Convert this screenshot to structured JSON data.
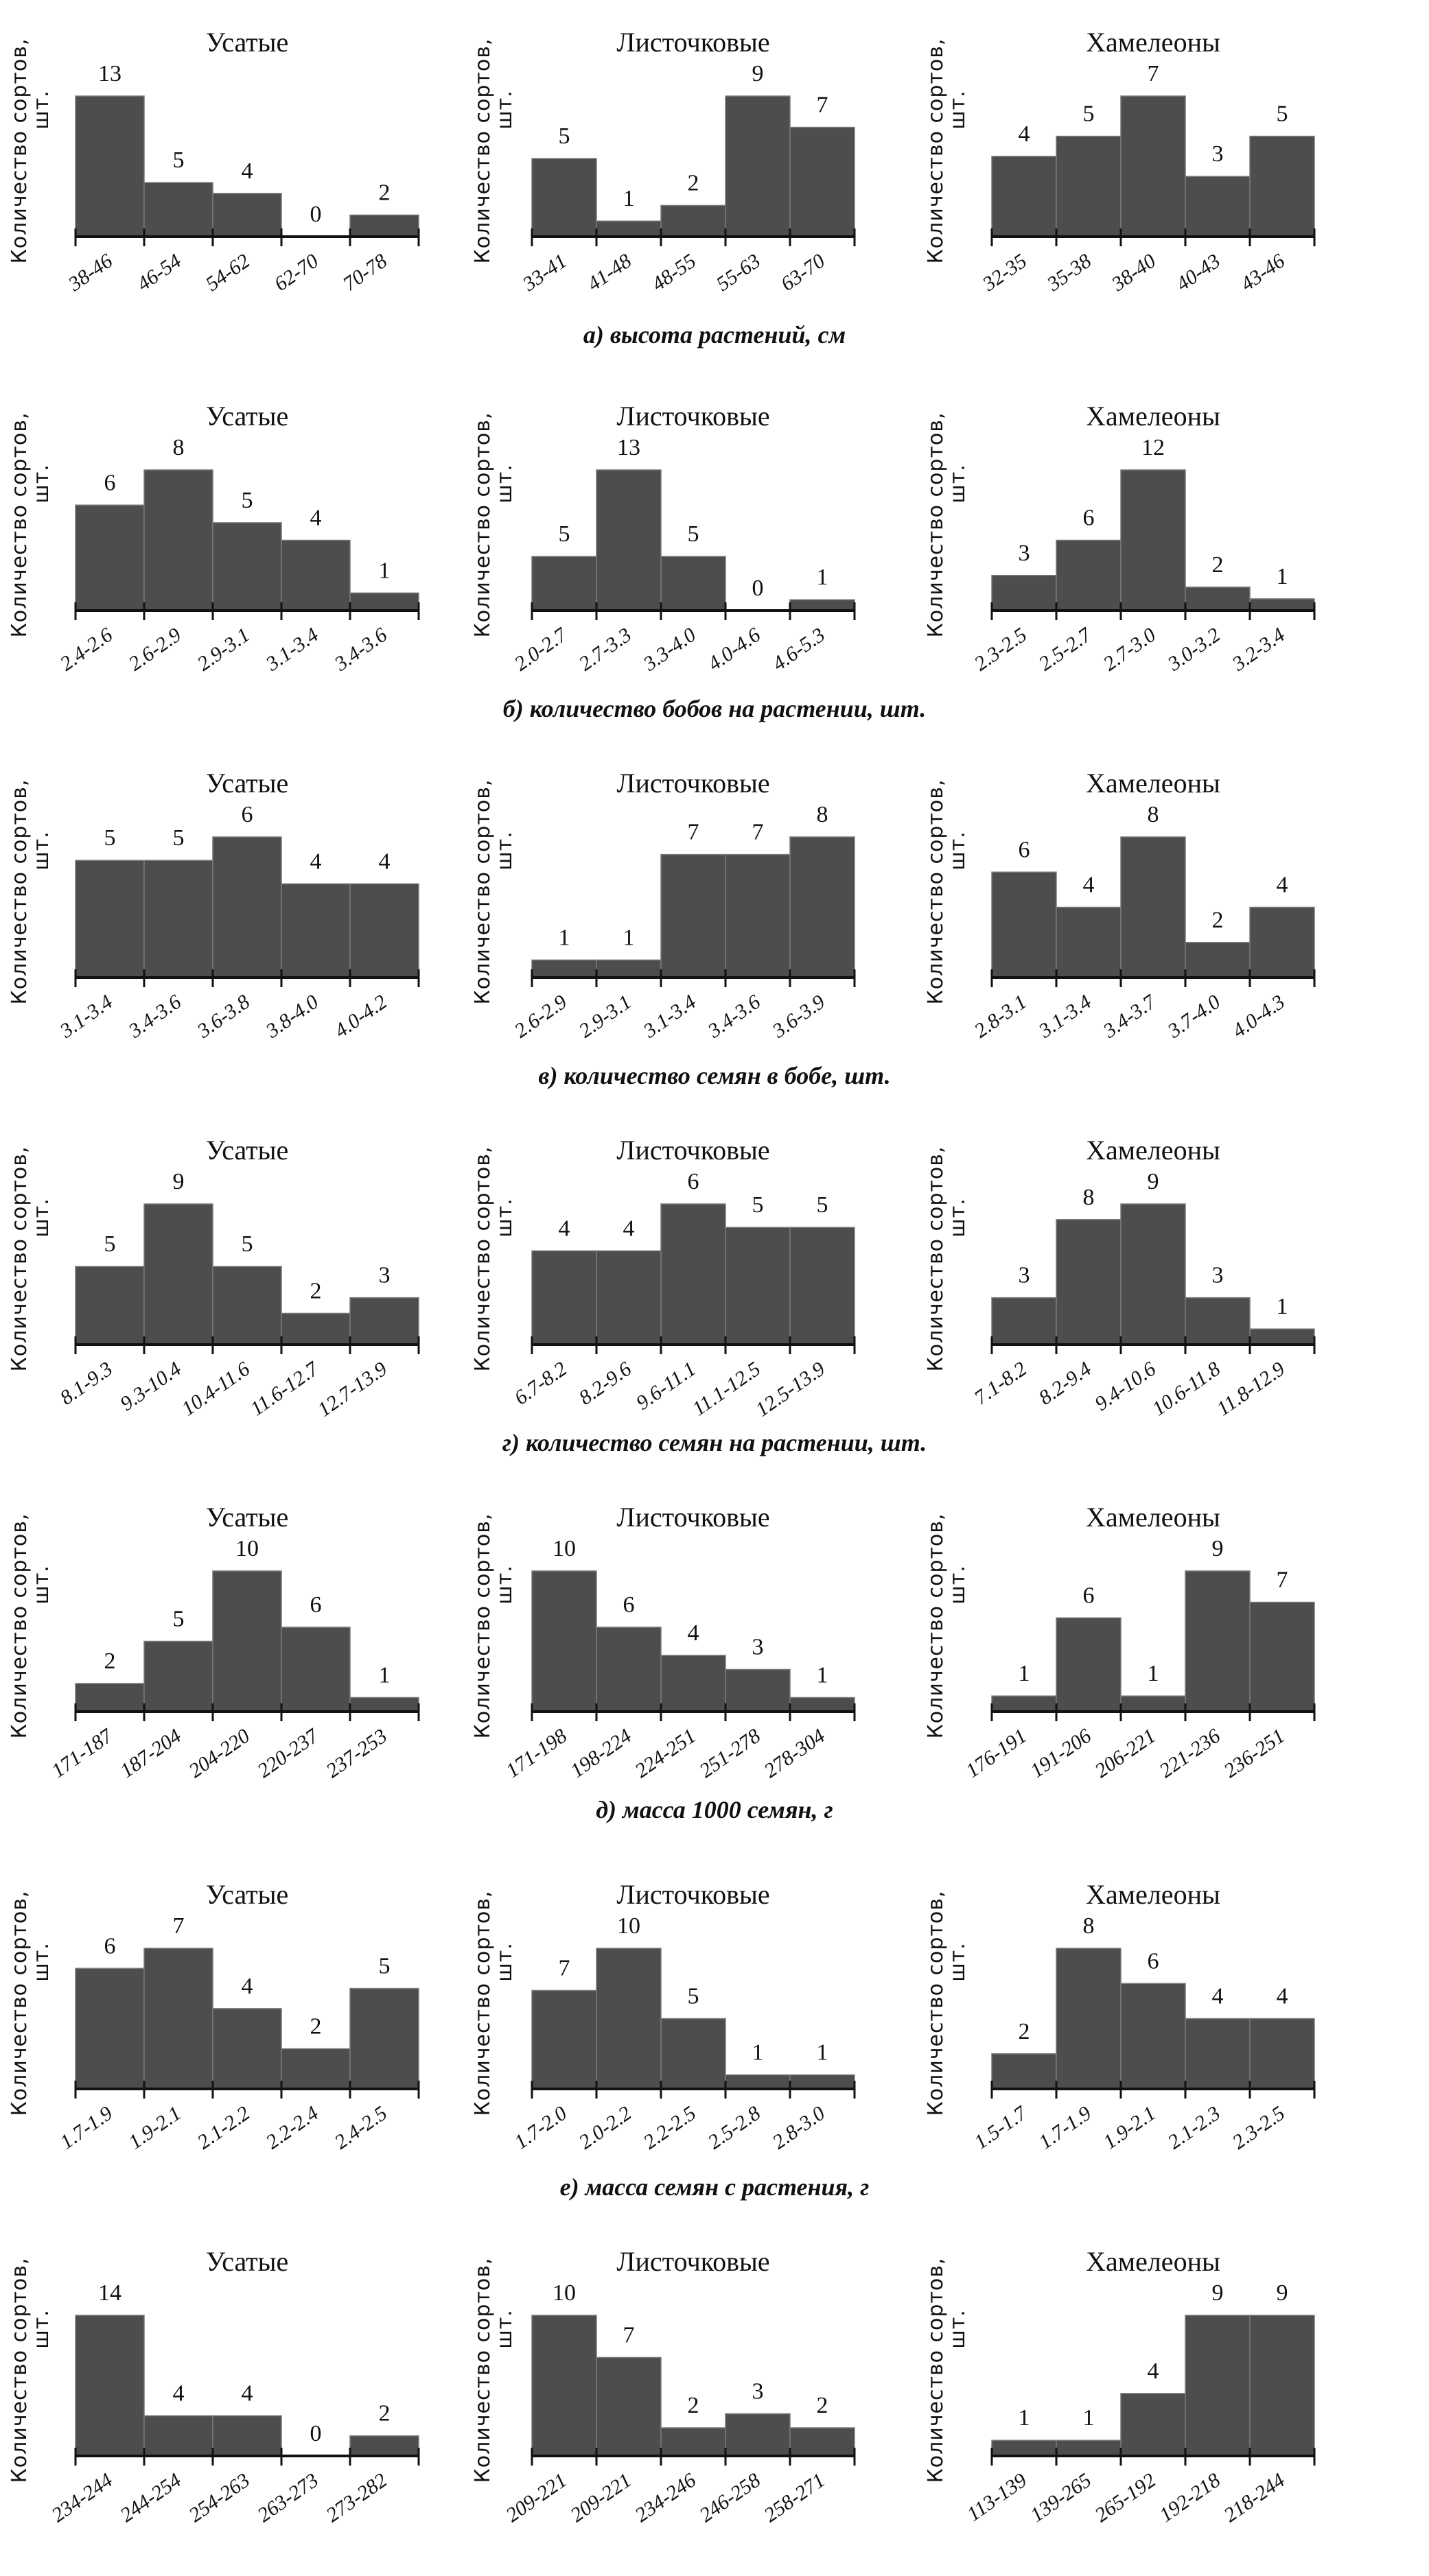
{
  "figure": {
    "group_titles": [
      "Усатые",
      "Листочковые",
      "Хамелеоны"
    ],
    "ylabel_line1": "Количество сортов,",
    "ylabel_line2": "шт."
  },
  "chart_data": [
    {
      "type": "bar",
      "row_caption": "а) высота растений, см",
      "panels": [
        {
          "title": "Усатые",
          "categories": [
            "38-46",
            "46-54",
            "54-62",
            "62-70",
            "70-78"
          ],
          "values": [
            13,
            5,
            4,
            0,
            2
          ]
        },
        {
          "title": "Листочковые",
          "categories": [
            "33-41",
            "41-48",
            "48-55",
            "55-63",
            "63-70"
          ],
          "values": [
            5,
            1,
            2,
            9,
            7
          ]
        },
        {
          "title": "Хамелеоны",
          "categories": [
            "32-35",
            "35-38",
            "38-40",
            "40-43",
            "43-46"
          ],
          "values": [
            4,
            5,
            7,
            3,
            5
          ]
        }
      ]
    },
    {
      "type": "bar",
      "row_caption": "б) количество бобов на растении, шт.",
      "panels": [
        {
          "title": "Усатые",
          "categories": [
            "2.4-2.6",
            "2.6-2.9",
            "2.9-3.1",
            "3.1-3.4",
            "3.4-3.6"
          ],
          "values": [
            6,
            8,
            5,
            4,
            1
          ]
        },
        {
          "title": "Листочковые",
          "categories": [
            "2.0-2.7",
            "2.7-3.3",
            "3.3-4.0",
            "4.0-4.6",
            "4.6-5.3"
          ],
          "values": [
            5,
            13,
            5,
            0,
            1
          ]
        },
        {
          "title": "Хамелеоны",
          "categories": [
            "2.3-2.5",
            "2.5-2.7",
            "2.7-3.0",
            "3.0-3.2",
            "3.2-3.4"
          ],
          "values": [
            3,
            6,
            12,
            2,
            1
          ]
        }
      ]
    },
    {
      "type": "bar",
      "row_caption": "в) количество семян в бобе, шт.",
      "panels": [
        {
          "title": "Усатые",
          "categories": [
            "3.1-3.4",
            "3.4-3.6",
            "3.6-3.8",
            "3.8-4.0",
            "4.0-4.2"
          ],
          "values": [
            5,
            5,
            6,
            4,
            4
          ]
        },
        {
          "title": "Листочковые",
          "categories": [
            "2.6-2.9",
            "2.9-3.1",
            "3.1-3.4",
            "3.4-3.6",
            "3.6-3.9"
          ],
          "values": [
            1,
            1,
            7,
            7,
            8
          ]
        },
        {
          "title": "Хамелеоны",
          "categories": [
            "2.8-3.1",
            "3.1-3.4",
            "3.4-3.7",
            "3.7-4.0",
            "4.0-4.3"
          ],
          "values": [
            6,
            4,
            8,
            2,
            4
          ]
        }
      ]
    },
    {
      "type": "bar",
      "row_caption": "г) количество семян на растении, шт.",
      "panels": [
        {
          "title": "Усатые",
          "categories": [
            "8.1-9.3",
            "9.3-10.4",
            "10.4-11.6",
            "11.6-12.7",
            "12.7-13.9"
          ],
          "values": [
            5,
            9,
            5,
            2,
            3
          ]
        },
        {
          "title": "Листочковые",
          "categories": [
            "6.7-8.2",
            "8.2-9.6",
            "9.6-11.1",
            "11.1-12.5",
            "12.5-13.9"
          ],
          "values": [
            4,
            4,
            6,
            5,
            5
          ]
        },
        {
          "title": "Хамелеоны",
          "categories": [
            "7.1-8.2",
            "8.2-9.4",
            "9.4-10.6",
            "10.6-11.8",
            "11.8-12.9"
          ],
          "values": [
            3,
            8,
            9,
            3,
            1
          ]
        }
      ]
    },
    {
      "type": "bar",
      "row_caption": "д) масса 1000 семян, г",
      "panels": [
        {
          "title": "Усатые",
          "categories": [
            "171-187",
            "187-204",
            "204-220",
            "220-237",
            "237-253"
          ],
          "values": [
            2,
            5,
            10,
            6,
            1
          ]
        },
        {
          "title": "Листочковые",
          "categories": [
            "171-198",
            "198-224",
            "224-251",
            "251-278",
            "278-304"
          ],
          "values": [
            10,
            6,
            4,
            3,
            1
          ]
        },
        {
          "title": "Хамелеоны",
          "categories": [
            "176-191",
            "191-206",
            "206-221",
            "221-236",
            "236-251"
          ],
          "values": [
            1,
            6,
            1,
            9,
            7
          ]
        }
      ]
    },
    {
      "type": "bar",
      "row_caption": "е) масса семян с растения, г",
      "panels": [
        {
          "title": "Усатые",
          "categories": [
            "1.7-1.9",
            "1.9-2.1",
            "2.1-2.2",
            "2.2-2.4",
            "2.4-2.5"
          ],
          "values": [
            6,
            7,
            4,
            2,
            5
          ]
        },
        {
          "title": "Листочковые",
          "categories": [
            "1.7-2.0",
            "2.0-2.2",
            "2.2-2.5",
            "2.5-2.8",
            "2.8-3.0"
          ],
          "values": [
            7,
            10,
            5,
            1,
            1
          ]
        },
        {
          "title": "Хамелеоны",
          "categories": [
            "1.5-1.7",
            "1.7-1.9",
            "1.9-2.1",
            "2.1-2.3",
            "2.3-2.5"
          ],
          "values": [
            2,
            8,
            6,
            4,
            4
          ]
        }
      ]
    },
    {
      "type": "bar",
      "row_caption": "",
      "panels": [
        {
          "title": "Усатые",
          "categories": [
            "234-244",
            "244-254",
            "254-263",
            "263-273",
            "273-282"
          ],
          "values": [
            14,
            4,
            4,
            0,
            2
          ]
        },
        {
          "title": "Листочковые",
          "categories": [
            "209-221",
            "209-221",
            "234-246",
            "246-258",
            "258-271"
          ],
          "values": [
            10,
            7,
            2,
            3,
            2
          ]
        },
        {
          "title": "Хамелеоны",
          "categories": [
            "113-139",
            "139-265",
            "265-192",
            "192-218",
            "218-244"
          ],
          "values": [
            1,
            1,
            4,
            9,
            9
          ]
        }
      ]
    }
  ]
}
